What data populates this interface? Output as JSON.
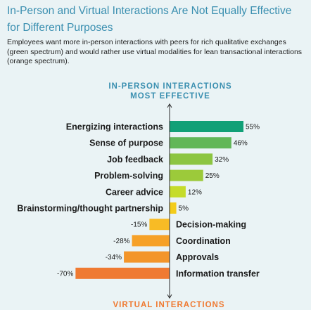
{
  "header": {
    "title": "In-Person and Virtual Interactions Are Not Equally Effective for Different Purposes",
    "subtitle": "Employees want more in-person interactions with peers for rich qualitative exchanges (green spectrum) and would rather use virtual modalities for lean transactional interactions (orange spectrum)."
  },
  "chart_data": {
    "type": "bar",
    "orientation": "horizontal-diverging",
    "top_label_line1": "IN-PERSON INTERACTIONS",
    "top_label_line2": "MOST EFFECTIVE",
    "bottom_label": "VIRTUAL INTERACTIONS",
    "categories": [
      "Energizing interactions",
      "Sense of purpose",
      "Job feedback",
      "Problem-solving",
      "Career advice",
      "Brainstorming/thought partnership",
      "Decision-making",
      "Coordination",
      "Approvals",
      "Information transfer"
    ],
    "values": [
      55,
      46,
      32,
      25,
      12,
      5,
      -15,
      -28,
      -34,
      -70
    ],
    "value_labels": [
      "55%",
      "46%",
      "32%",
      "25%",
      "12%",
      "5%",
      "-15%",
      "-28%",
      "-34%",
      "-70%"
    ],
    "colors": [
      "#11a077",
      "#62b758",
      "#8cc541",
      "#9cca3a",
      "#c5dc2a",
      "#f3cc1b",
      "#f8bb25",
      "#f6a128",
      "#f3952a",
      "#ef7a32"
    ],
    "label_color": "#3a8fb0",
    "grid": false
  }
}
